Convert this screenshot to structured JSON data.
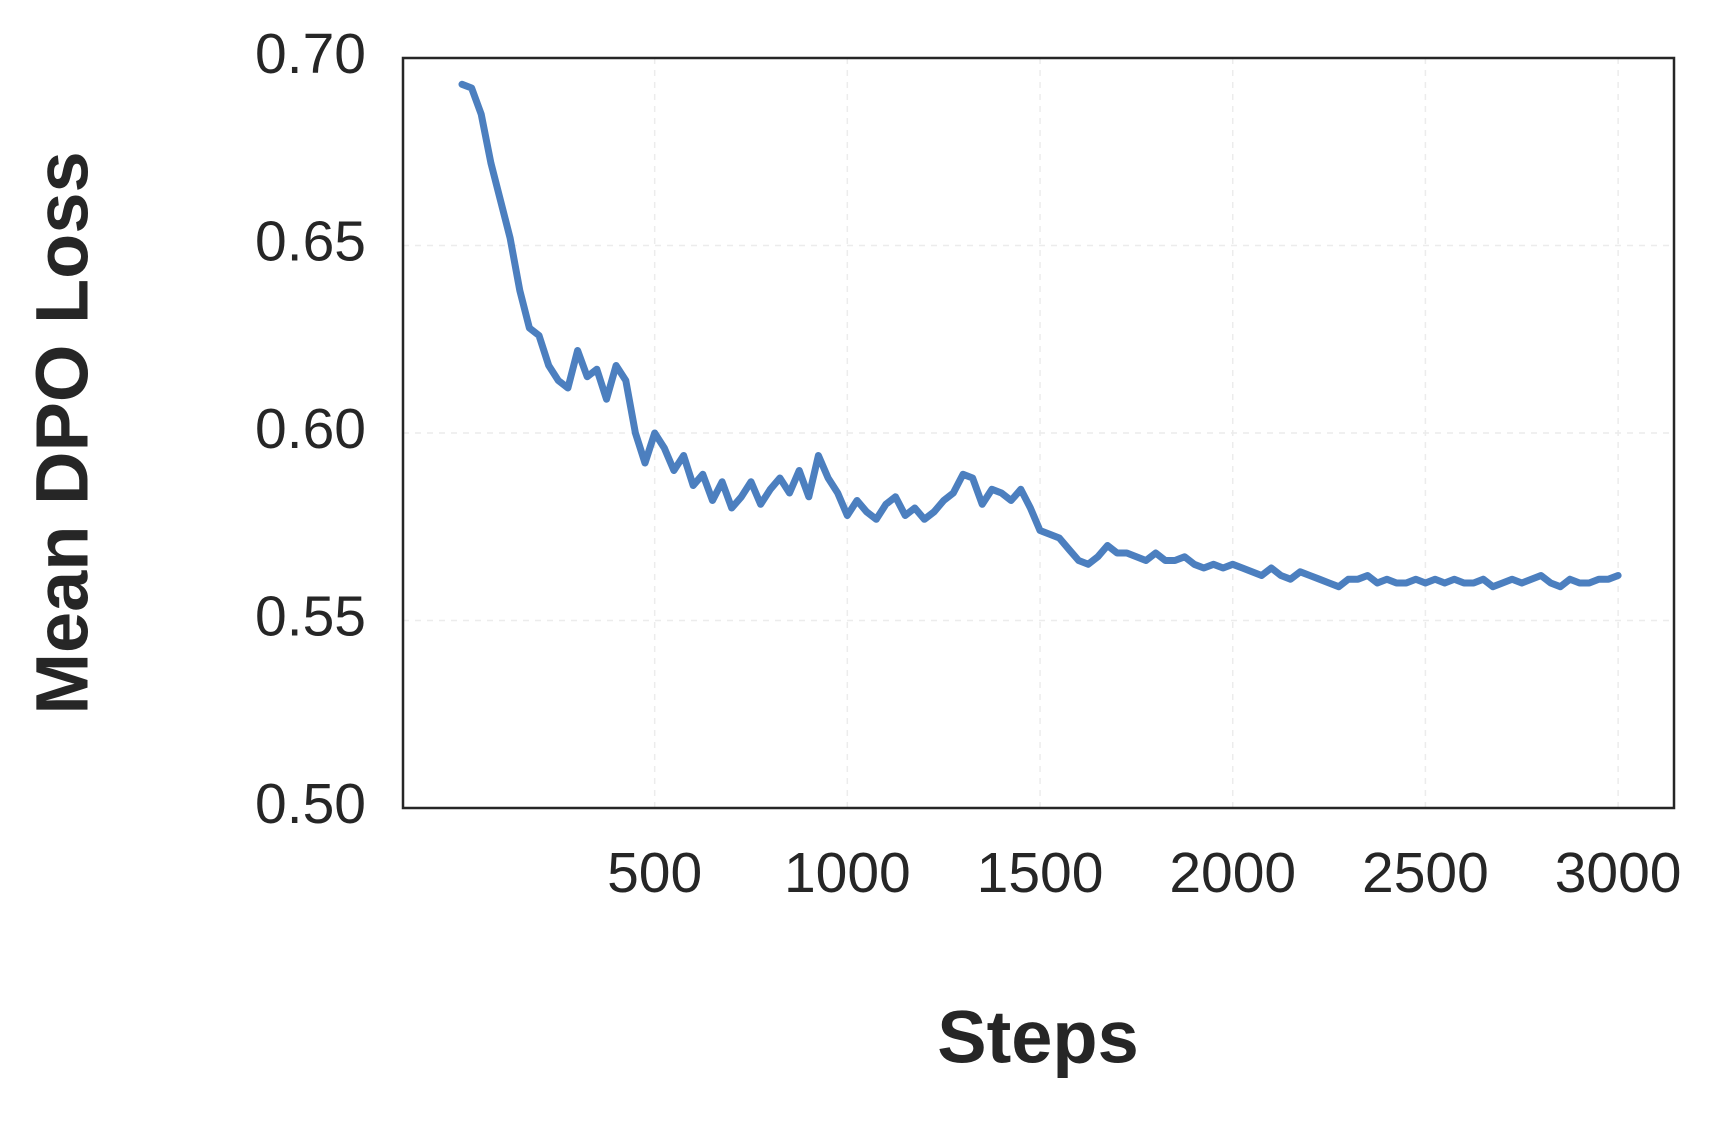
{
  "chart_data": {
    "type": "line",
    "x_label": "Steps",
    "y_label": "Mean DPO Loss",
    "xlim": [
      -153,
      3145
    ],
    "ylim": [
      0.5,
      0.7
    ],
    "xticks": [
      500,
      1000,
      1500,
      2000,
      2500,
      3000
    ],
    "yticks": [
      {
        "value": 0.5,
        "label": "0.50"
      },
      {
        "value": 0.55,
        "label": "0.55"
      },
      {
        "value": 0.6,
        "label": "0.60"
      },
      {
        "value": 0.65,
        "label": "0.65"
      },
      {
        "value": 0.7,
        "label": "0.70"
      }
    ],
    "grid": true,
    "x": [
      0,
      25,
      50,
      75,
      100,
      125,
      150,
      175,
      200,
      225,
      250,
      275,
      300,
      325,
      350,
      375,
      400,
      425,
      450,
      475,
      500,
      525,
      550,
      575,
      600,
      625,
      650,
      675,
      700,
      725,
      750,
      775,
      800,
      825,
      850,
      875,
      900,
      925,
      950,
      975,
      1000,
      1025,
      1050,
      1075,
      1100,
      1125,
      1150,
      1175,
      1200,
      1225,
      1250,
      1275,
      1300,
      1325,
      1350,
      1375,
      1400,
      1425,
      1450,
      1475,
      1500,
      1525,
      1550,
      1575,
      1600,
      1625,
      1650,
      1675,
      1700,
      1725,
      1750,
      1775,
      1800,
      1825,
      1850,
      1875,
      1900,
      1925,
      1950,
      1975,
      2000,
      2025,
      2050,
      2075,
      2100,
      2125,
      2150,
      2175,
      2200,
      2225,
      2250,
      2275,
      2300,
      2325,
      2350,
      2375,
      2400,
      2425,
      2450,
      2475,
      2500,
      2525,
      2550,
      2575,
      2600,
      2625,
      2650,
      2675,
      2700,
      2725,
      2750,
      2775,
      2800,
      2825,
      2850,
      2875,
      2900,
      2925,
      2950,
      2975,
      3000
    ],
    "series": [
      {
        "color": "#4c7fbf",
        "values": [
          0.693,
          0.692,
          0.685,
          0.672,
          0.662,
          0.652,
          0.638,
          0.628,
          0.626,
          0.618,
          0.614,
          0.612,
          0.622,
          0.615,
          0.617,
          0.609,
          0.618,
          0.614,
          0.6,
          0.592,
          0.6,
          0.596,
          0.59,
          0.594,
          0.586,
          0.589,
          0.582,
          0.587,
          0.58,
          0.583,
          0.587,
          0.581,
          0.585,
          0.588,
          0.584,
          0.59,
          0.583,
          0.594,
          0.588,
          0.584,
          0.578,
          0.582,
          0.579,
          0.577,
          0.581,
          0.583,
          0.578,
          0.58,
          0.577,
          0.579,
          0.582,
          0.584,
          0.589,
          0.588,
          0.581,
          0.585,
          0.584,
          0.582,
          0.585,
          0.58,
          0.574,
          0.573,
          0.572,
          0.569,
          0.566,
          0.565,
          0.567,
          0.57,
          0.568,
          0.568,
          0.567,
          0.566,
          0.568,
          0.566,
          0.566,
          0.567,
          0.565,
          0.564,
          0.565,
          0.564,
          0.565,
          0.564,
          0.563,
          0.562,
          0.564,
          0.562,
          0.561,
          0.563,
          0.562,
          0.561,
          0.56,
          0.559,
          0.561,
          0.561,
          0.562,
          0.56,
          0.561,
          0.56,
          0.56,
          0.561,
          0.56,
          0.561,
          0.56,
          0.561,
          0.56,
          0.56,
          0.561,
          0.559,
          0.56,
          0.561,
          0.56,
          0.561,
          0.562,
          0.56,
          0.559,
          0.561,
          0.56,
          0.56,
          0.561,
          0.561,
          0.562
        ]
      }
    ]
  }
}
